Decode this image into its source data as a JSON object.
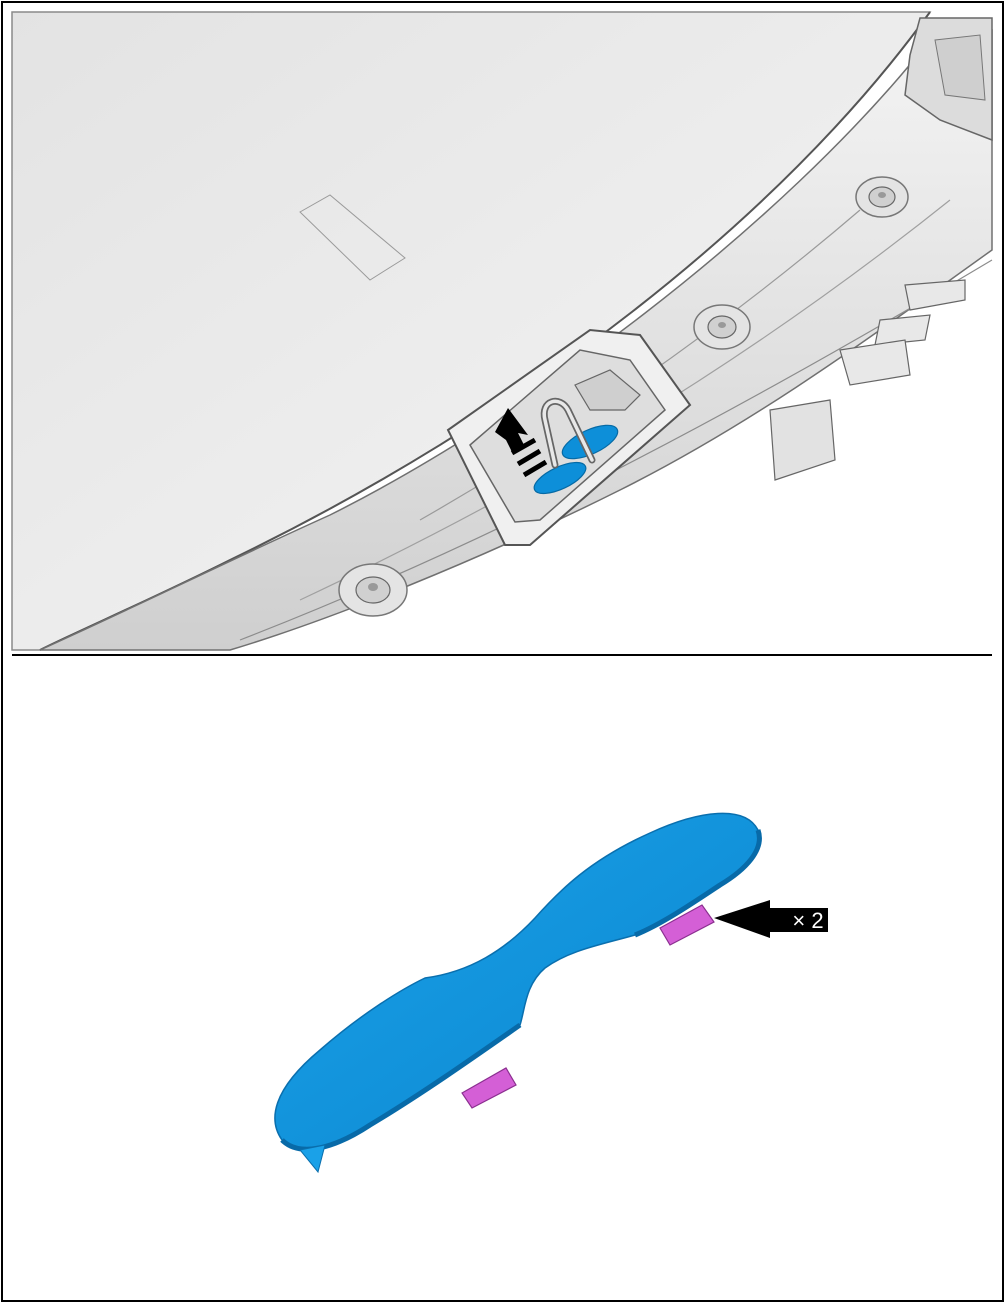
{
  "figure": {
    "top_panel": {
      "description_icon": "arrow-icon",
      "panel_fill": "#e6e6e6",
      "arrow_color": "#000000"
    },
    "bottom_panel": {
      "part_color": "#0d8fd9",
      "clip_color": "#d45fd6",
      "callout": {
        "label": "× 2"
      }
    }
  }
}
